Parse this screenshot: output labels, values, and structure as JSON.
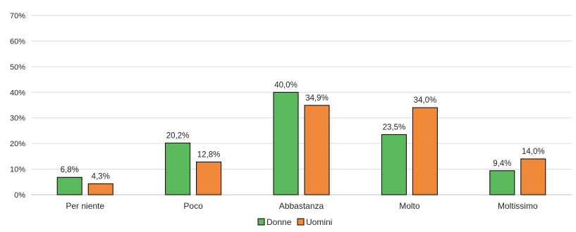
{
  "chart_data": {
    "type": "bar",
    "categories": [
      "Per niente",
      "Poco",
      "Abbastanza",
      "Molto",
      "Moltissimo"
    ],
    "series": [
      {
        "name": "Donne",
        "color": "#5cb85c",
        "values": [
          6.8,
          20.2,
          40.0,
          23.5,
          9.4
        ],
        "labels": [
          "6,8%",
          "20,2%",
          "40,0%",
          "23,5%",
          "9,4%"
        ]
      },
      {
        "name": "Uomini",
        "color": "#f0883a",
        "values": [
          4.3,
          12.8,
          34.9,
          34.0,
          14.0
        ],
        "labels": [
          "4,3%",
          "12,8%",
          "34,9%",
          "34,0%",
          "14,0%"
        ]
      }
    ],
    "ylim": [
      0,
      70
    ],
    "yticks": [
      0,
      10,
      20,
      30,
      40,
      50,
      60,
      70
    ],
    "ytick_labels": [
      "0%",
      "10%",
      "20%",
      "30%",
      "40%",
      "50%",
      "60%",
      "70%"
    ],
    "grid": true,
    "legend": "bottom-center",
    "title": "",
    "xlabel": "",
    "ylabel": ""
  }
}
